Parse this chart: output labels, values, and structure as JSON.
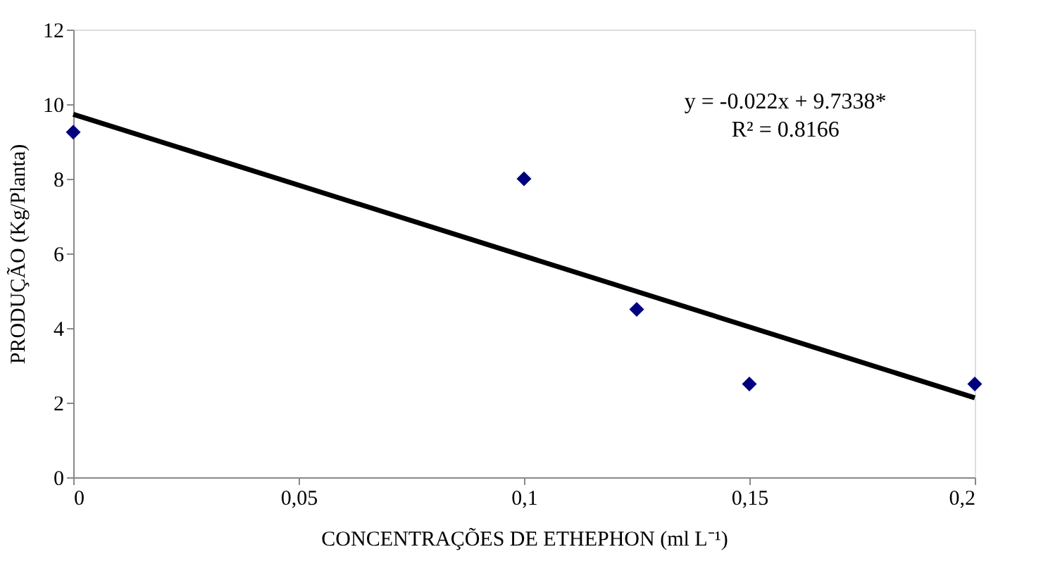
{
  "chart_data": {
    "type": "scatter",
    "xlabel": "CONCENTRAÇÕES DE ETHEPHON (ml L⁻¹)",
    "ylabel": "PRODUÇÃO (Kg/Planta)",
    "x": [
      0,
      0.1,
      0.125,
      0.15,
      0.2
    ],
    "series": [
      {
        "type": "scatter",
        "color": "#00007f",
        "marker": "diamond",
        "values": [
          9.25,
          8.0,
          4.5,
          2.5,
          2.5
        ]
      },
      {
        "type": "line",
        "color": "#000000",
        "marker": "none",
        "line_style": "solid",
        "x": [
          0,
          0.2
        ],
        "values": [
          9.73,
          2.13
        ]
      }
    ],
    "xlim": [
      0,
      0.2
    ],
    "xticks": [
      0,
      {
        "value": 0.05,
        "label": "0,05"
      },
      {
        "value": 0.1,
        "label": "0,1"
      },
      {
        "value": 0.15,
        "label": "0,15"
      },
      {
        "value": 0.2,
        "label": "0,2"
      }
    ],
    "ylim": [
      0,
      12
    ],
    "yticks": [
      0,
      2,
      4,
      6,
      8,
      10,
      12
    ],
    "grid": false,
    "annotations": [
      "y = -0.022x + 9.7338*",
      "R² = 0.8166"
    ]
  }
}
